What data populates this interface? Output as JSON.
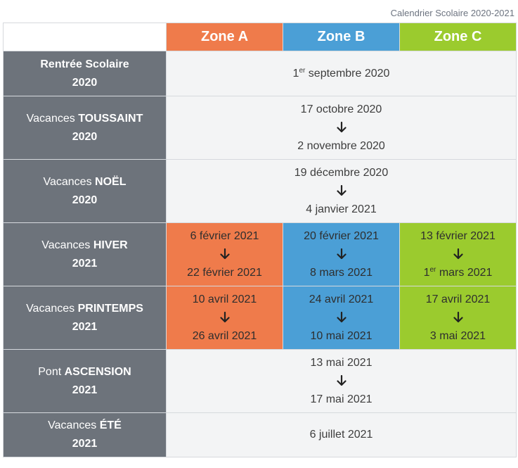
{
  "caption": "Calendrier Scolaire 2020-2021",
  "zones": [
    "Zone A",
    "Zone B",
    "Zone C"
  ],
  "colors": {
    "zone_a": "#ef7b4b",
    "zone_b": "#4b9fd6",
    "zone_c": "#9bcb2e",
    "label_bg": "#6d737b",
    "span_bg": "#f3f4f5"
  },
  "icons": {
    "arrow": "arrow-down-icon"
  },
  "rows": {
    "rentree": {
      "label_plain": "",
      "label_bold": "Rentrée Scolaire",
      "year": "2020",
      "date_num": "1",
      "date_sup": "er",
      "date_rest": " septembre 2020"
    },
    "toussaint": {
      "label_plain": "Vacances ",
      "label_bold": "TOUSSAINT",
      "year": "2020",
      "start": "17 octobre 2020",
      "end": "2 novembre 2020"
    },
    "noel": {
      "label_plain": "Vacances ",
      "label_bold": "NOËL",
      "year": "2020",
      "start": "19 décembre 2020",
      "end": "4 janvier 2021"
    },
    "hiver": {
      "label_plain": "Vacances ",
      "label_bold": "HIVER",
      "year": "2021",
      "zone_a": {
        "start": "6 février 2021",
        "end": "22 février 2021"
      },
      "zone_b": {
        "start": "20 février 2021",
        "end": "8 mars 2021"
      },
      "zone_c": {
        "start": "13 février 2021",
        "end_num": "1",
        "end_sup": "er",
        "end_rest": " mars 2021"
      }
    },
    "printemps": {
      "label_plain": "Vacances ",
      "label_bold": "PRINTEMPS",
      "year": "2021",
      "zone_a": {
        "start": "10 avril 2021",
        "end": "26 avril 2021"
      },
      "zone_b": {
        "start": "24 avril 2021",
        "end": "10 mai 2021"
      },
      "zone_c": {
        "start": "17 avril 2021",
        "end": "3 mai 2021"
      }
    },
    "ascension": {
      "label_plain": "Pont ",
      "label_bold": "ASCENSION",
      "year": "2021",
      "start": "13 mai 2021",
      "end": "17 mai 2021"
    },
    "ete": {
      "label_plain": "Vacances ",
      "label_bold": "ÉTÉ",
      "year": "2021",
      "date": "6 juillet 2021"
    }
  }
}
